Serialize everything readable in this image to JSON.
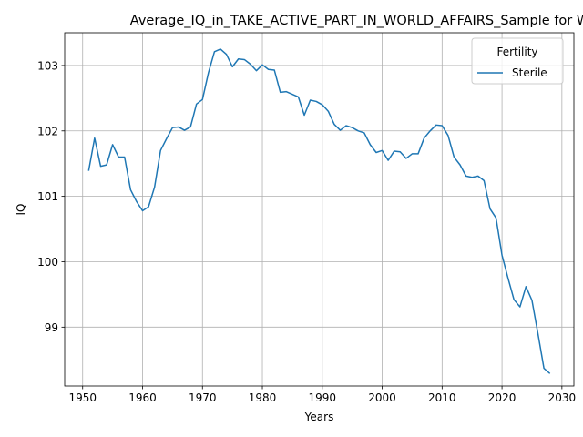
{
  "chart_data": {
    "type": "line",
    "title": "Average_IQ_in_TAKE_ACTIVE_PART_IN_WORLD_AFFAIRS_Sample for Whole",
    "xlabel": "Years",
    "ylabel": "IQ",
    "xlim": [
      1947,
      2032
    ],
    "ylim": [
      98.1,
      103.5
    ],
    "xticks": [
      1950,
      1960,
      1970,
      1980,
      1990,
      2000,
      2010,
      2020,
      2030
    ],
    "yticks": [
      99,
      100,
      101,
      102,
      103
    ],
    "grid": true,
    "legend": {
      "title": "Fertility",
      "placement": "top-right"
    },
    "series": [
      {
        "name": "Sterile",
        "color": "#1f77b4",
        "x": [
          1951,
          1952,
          1953,
          1954,
          1955,
          1956,
          1957,
          1958,
          1959,
          1960,
          1961,
          1962,
          1963,
          1964,
          1965,
          1966,
          1967,
          1968,
          1969,
          1970,
          1971,
          1972,
          1973,
          1974,
          1975,
          1976,
          1977,
          1978,
          1979,
          1980,
          1981,
          1982,
          1983,
          1984,
          1985,
          1986,
          1987,
          1988,
          1989,
          1990,
          1991,
          1992,
          1993,
          1994,
          1995,
          1996,
          1997,
          1998,
          1999,
          2000,
          2001,
          2002,
          2003,
          2004,
          2005,
          2006,
          2007,
          2008,
          2009,
          2010,
          2011,
          2012,
          2013,
          2014,
          2015,
          2016,
          2017,
          2018,
          2019,
          2020,
          2021,
          2022,
          2023,
          2024,
          2025,
          2026,
          2027,
          2028
        ],
        "values": [
          101.39,
          101.89,
          101.46,
          101.48,
          101.79,
          101.6,
          101.6,
          101.1,
          100.92,
          100.78,
          100.84,
          101.14,
          101.7,
          101.88,
          102.05,
          102.06,
          102.01,
          102.06,
          102.41,
          102.48,
          102.89,
          103.21,
          103.25,
          103.17,
          102.98,
          103.1,
          103.09,
          103.02,
          102.92,
          103.01,
          102.94,
          102.93,
          102.59,
          102.6,
          102.56,
          102.52,
          102.24,
          102.47,
          102.45,
          102.4,
          102.3,
          102.1,
          102.01,
          102.08,
          102.05,
          102.0,
          101.97,
          101.79,
          101.67,
          101.7,
          101.55,
          101.69,
          101.68,
          101.58,
          101.65,
          101.65,
          101.89,
          102.0,
          102.09,
          102.08,
          101.93,
          101.6,
          101.48,
          101.31,
          101.29,
          101.31,
          101.24,
          100.81,
          100.67,
          100.1,
          99.75,
          99.42,
          99.31,
          99.62,
          99.41,
          98.9,
          98.37,
          98.29
        ]
      }
    ]
  }
}
